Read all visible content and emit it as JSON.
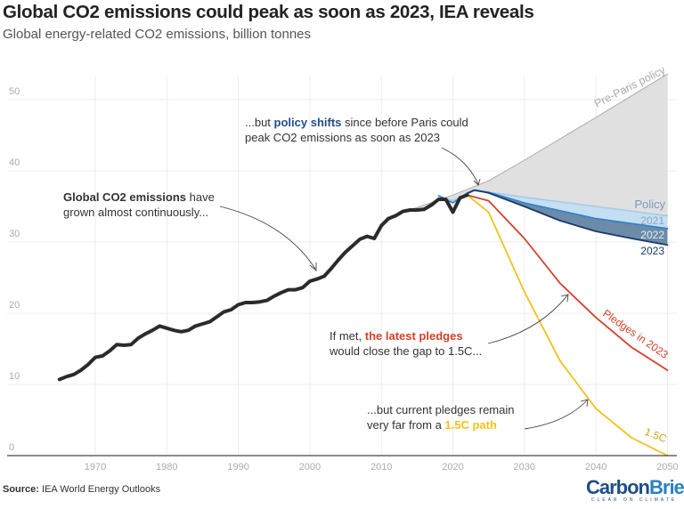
{
  "header": {
    "title": "Global CO2 emissions could peak as soon as 2023, IEA reveals",
    "subtitle": "Global energy-related CO2 emissions, billion tonnes"
  },
  "footer": {
    "source_label": "Source:",
    "source_text": "IEA World Energy Outlooks",
    "logo_part1": "Carbon",
    "logo_part2": "Brief",
    "logo_tagline": "CLEAR ON CLIMATE"
  },
  "colors": {
    "history": "#2b2b2b",
    "pre_paris": "#aaaaaa",
    "pre_paris_fill": "#e0e0e0",
    "policy_2021": "#a8cbe8",
    "policy_2021_fill": "#c4def2",
    "policy_2022": "#2d80cf",
    "policy_2022_fill": "#6b8ba8",
    "policy_2023": "#1c3a66",
    "pledges": "#d4402b",
    "path_1_5c": "#f2c21b",
    "accent_blue": "#1f4e86",
    "accent_red": "#d4402b",
    "accent_yellow": "#f2c21b"
  },
  "chart_data": {
    "type": "line",
    "title": "Global CO2 emissions could peak as soon as 2023, IEA reveals",
    "subtitle": "Global energy-related CO2 emissions, billion tonnes",
    "xlim": [
      1960,
      2052
    ],
    "ylim": [
      0,
      55
    ],
    "x_ticks": [
      1970,
      1980,
      1990,
      2000,
      2010,
      2020,
      2030,
      2040,
      2050
    ],
    "y_ticks": [
      0,
      10,
      20,
      30,
      40,
      50
    ],
    "grid": true,
    "series": [
      {
        "key": "history",
        "x": [
          1965,
          1966,
          1967,
          1968,
          1969,
          1970,
          1971,
          1972,
          1973,
          1974,
          1975,
          1976,
          1977,
          1978,
          1979,
          1980,
          1981,
          1982,
          1983,
          1984,
          1985,
          1986,
          1987,
          1988,
          1989,
          1990,
          1991,
          1992,
          1993,
          1994,
          1995,
          1996,
          1997,
          1998,
          1999,
          2000,
          2001,
          2002,
          2003,
          2004,
          2005,
          2006,
          2007,
          2008,
          2009,
          2010,
          2011,
          2012,
          2013,
          2014,
          2015,
          2016,
          2017,
          2018,
          2019,
          2020,
          2021,
          2022
        ],
        "values": [
          10.7,
          11.1,
          11.4,
          12.0,
          12.8,
          13.8,
          14.0,
          14.7,
          15.6,
          15.5,
          15.6,
          16.5,
          17.1,
          17.6,
          18.2,
          17.9,
          17.6,
          17.4,
          17.6,
          18.2,
          18.5,
          18.8,
          19.5,
          20.2,
          20.5,
          21.2,
          21.5,
          21.5,
          21.6,
          21.8,
          22.4,
          22.9,
          23.3,
          23.3,
          23.6,
          24.5,
          24.8,
          25.2,
          26.3,
          27.5,
          28.6,
          29.5,
          30.4,
          30.8,
          30.5,
          32.3,
          33.3,
          33.7,
          34.3,
          34.5,
          34.5,
          34.6,
          35.2,
          36.0,
          36.0,
          34.2,
          36.2,
          36.6
        ]
      },
      {
        "key": "pre_paris",
        "name": "Pre-Paris policy",
        "x": [
          2014,
          2020,
          2025,
          2030,
          2040,
          2050
        ],
        "values": [
          34.5,
          36.6,
          38.6,
          41.5,
          47.5,
          53.6
        ]
      },
      {
        "key": "policy_2021",
        "name": "2021",
        "x": [
          2018,
          2020,
          2022,
          2023,
          2025,
          2030,
          2040,
          2050
        ],
        "values": [
          36.5,
          35.8,
          36.8,
          37.2,
          37.0,
          36.3,
          35.0,
          33.7
        ]
      },
      {
        "key": "policy_2022",
        "name": "2022",
        "x": [
          2018,
          2020,
          2022,
          2023,
          2025,
          2030,
          2040,
          2050
        ],
        "values": [
          36.5,
          35.5,
          36.9,
          37.3,
          37.0,
          35.5,
          33.3,
          31.9
        ]
      },
      {
        "key": "policy_2023",
        "name": "2023",
        "x": [
          2022,
          2023,
          2025,
          2030,
          2035,
          2040,
          2045,
          2050
        ],
        "values": [
          36.8,
          37.3,
          36.9,
          35.0,
          33.0,
          31.5,
          30.5,
          29.6
        ]
      },
      {
        "key": "pledges",
        "name": "Pledges in 2023",
        "x": [
          2022,
          2025,
          2030,
          2035,
          2040,
          2045,
          2050
        ],
        "values": [
          36.6,
          35.8,
          30.5,
          24.2,
          19.4,
          15.2,
          12.0
        ]
      },
      {
        "key": "path_1_5c",
        "name": "1.5C",
        "x": [
          2022,
          2025,
          2030,
          2035,
          2040,
          2045,
          2050
        ],
        "values": [
          36.6,
          34.2,
          23.0,
          13.3,
          6.6,
          2.5,
          0.0
        ]
      }
    ],
    "series_labels": {
      "pre_paris": "Pre-Paris policy",
      "policy": "Policy",
      "policy_2021": "2021",
      "policy_2022": "2022",
      "policy_2023": "2023",
      "pledges": "Pledges in 2023",
      "path_1_5c": "1.5C"
    },
    "annotations": {
      "history": {
        "line1_bold": "Global CO2 emissions",
        "line1_rest": " have",
        "line2": "grown almost continuously..."
      },
      "policy": {
        "line1_pre": "...but ",
        "line1_bold": "policy shifts",
        "line1_rest": " since before Paris could",
        "line2": "peak CO2 emissions as soon as 2023"
      },
      "pledges": {
        "line1_pre": "If met, ",
        "line1_bold": "the latest pledges",
        "line2": "would close the gap to 1.5C..."
      },
      "path_1_5c": {
        "line1": "...but current pledges remain",
        "line2_pre": "very far from a ",
        "line2_bold": "1.5C path"
      }
    }
  }
}
